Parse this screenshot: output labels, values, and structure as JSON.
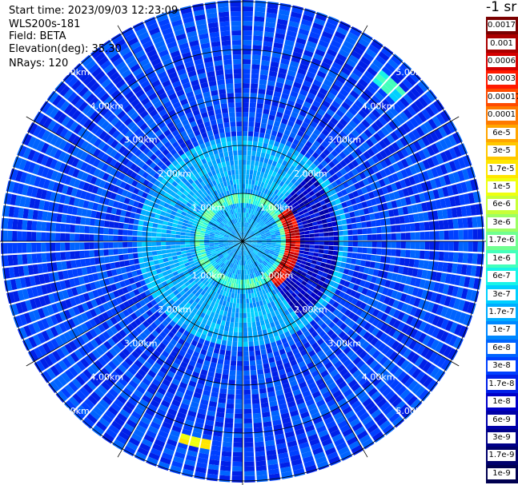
{
  "header": {
    "start_time": "Start time: 2023/09/03 12:23:09",
    "instrument": "WLS200s-181",
    "field": "Field: BETA",
    "elevation": "Elevation(deg): 35.30",
    "nrays": "NRays: 120"
  },
  "colorbar": {
    "unit": "-1 sr",
    "labels": [
      "0.0017",
      "0.001",
      "0.0006",
      "0.0003",
      "0.00017",
      "0.0001",
      "6e-5",
      "3e-5",
      "1.7e-5",
      "1e-5",
      "6e-6",
      "3e-6",
      "1.7e-6",
      "1e-6",
      "6e-7",
      "3e-7",
      "1.7e-7",
      "1e-7",
      "6e-8",
      "3e-8",
      "1.7e-8",
      "1e-8",
      "6e-9",
      "3e-9",
      "1.7e-9",
      "1e-9"
    ],
    "colors": [
      "#7a0000",
      "#aa0000",
      "#d40000",
      "#ff1a00",
      "#ff4a00",
      "#ff7a00",
      "#ffa500",
      "#ffc800",
      "#ffe600",
      "#f0ff10",
      "#c8ff38",
      "#9cff64",
      "#70ff90",
      "#44ffbc",
      "#18f4e8",
      "#00d0ff",
      "#00acff",
      "#0088ff",
      "#0064ff",
      "#0040ff",
      "#0020e8",
      "#0000c8",
      "#0000a8",
      "#000088",
      "#00006c",
      "#000050"
    ]
  },
  "chart_data": {
    "type": "heatmap",
    "projection": "polar",
    "field": "BETA",
    "n_rays": 120,
    "range_rings_km": [
      1,
      2,
      3,
      4,
      5
    ],
    "ring_labels": [
      "1.00km",
      "2.00km",
      "3.00km",
      "4.00km",
      "5.00km"
    ],
    "spoke_angles_deg": [
      0,
      30,
      60,
      90,
      120,
      150,
      180,
      210,
      240,
      270,
      300,
      330
    ],
    "max_range_km": 5.2,
    "color_scale": "log",
    "color_range": [
      1e-09,
      0.0017
    ],
    "background_level": "3e-8",
    "inner_level": "1.7e-7",
    "features": [
      {
        "name": "near-range ring",
        "range_km": [
          0.8,
          1.0
        ],
        "level": "1e-6"
      },
      {
        "name": "strong return arc",
        "range_km": [
          0.9,
          1.25
        ],
        "azimuth_deg": [
          55,
          145
        ],
        "level": "0.0006"
      },
      {
        "name": "weak sector",
        "range_km": [
          1.2,
          2.0
        ],
        "azimuth_deg": [
          45,
          145
        ],
        "level": "1e-8"
      },
      {
        "name": "echo north-east",
        "range_km": [
          4.3,
          4.6
        ],
        "azimuth_deg": [
          40,
          48
        ],
        "level": "6e-7"
      },
      {
        "name": "echo south",
        "range_km": [
          4.2,
          4.4
        ],
        "azimuth_deg": [
          190,
          198
        ],
        "level": "1.7e-5"
      }
    ]
  }
}
